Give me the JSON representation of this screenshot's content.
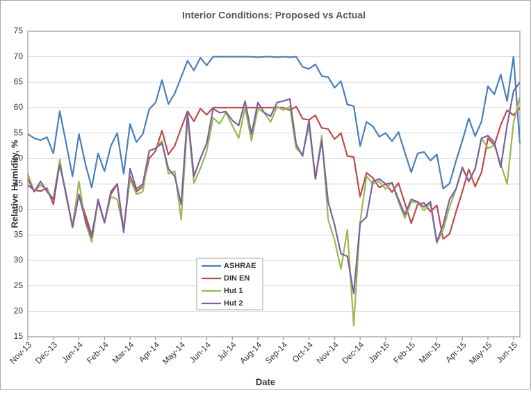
{
  "chart_data": {
    "type": "line",
    "title": "Interior Conditions:  Proposed  vs Actual",
    "x_label": "Date",
    "y_label": "Relative Humidity, %",
    "categories": [
      "Nov-13",
      null,
      null,
      null,
      "Dec-13",
      null,
      null,
      null,
      "Jan-14",
      null,
      null,
      null,
      "Feb-14",
      null,
      null,
      null,
      "Mar-14",
      null,
      null,
      null,
      "Apr-14",
      null,
      null,
      null,
      "May-14",
      null,
      null,
      null,
      "Jun-14",
      null,
      null,
      null,
      "Jul-14",
      null,
      null,
      null,
      "Aug-14",
      null,
      null,
      null,
      "Sep-14",
      null,
      null,
      null,
      "Oct-14",
      null,
      null,
      null,
      "Nov-14",
      null,
      null,
      null,
      "Dec-14",
      null,
      null,
      null,
      "Jan-15",
      null,
      null,
      null,
      "Feb-15",
      null,
      null,
      null,
      "Mar-15",
      null,
      null,
      null,
      "Apr-15",
      null,
      null,
      null,
      "May-15",
      null,
      null,
      null,
      "Jun-15",
      null
    ],
    "series": [
      {
        "name": "ASHRAE",
        "color": "#4a7ebb",
        "values": [
          54.8,
          54,
          53.6,
          54.2,
          51,
          59.3,
          53,
          46.5,
          54.8,
          49,
          44.3,
          51,
          47.5,
          52.5,
          55,
          47,
          56.8,
          53.2,
          54.8,
          59.7,
          61,
          65.4,
          60.7,
          62.8,
          66,
          69.2,
          67.3,
          69.8,
          68.3,
          70,
          70,
          70,
          70,
          70,
          70,
          70,
          69.9,
          70,
          70,
          69.9,
          70,
          69.9,
          70,
          68,
          67.6,
          68.5,
          66.2,
          66,
          63.9,
          65.2,
          60.6,
          60.3,
          52.4,
          57.2,
          56.3,
          54.3,
          55,
          53.4,
          55.2,
          51.2,
          47.3,
          51,
          51.3,
          49.6,
          50.8,
          44.1,
          45.1,
          49.5,
          53.5,
          57.9,
          54.4,
          57.3,
          64.2,
          62.6,
          66.5,
          61.3,
          70,
          53
        ]
      },
      {
        "name": "DIN EN",
        "color": "#be4b48",
        "values": [
          44.8,
          43.8,
          43.6,
          44.2,
          41,
          49.2,
          43,
          36.5,
          43,
          39,
          35,
          41.5,
          37.5,
          43,
          45,
          36,
          46.5,
          43.5,
          44.5,
          50,
          51.5,
          55.5,
          50.8,
          52.5,
          56,
          59.3,
          57.3,
          59.8,
          58.6,
          60,
          60,
          60,
          60,
          60,
          60,
          60,
          60,
          60,
          60,
          60,
          60,
          59.5,
          60.2,
          57.8,
          57.6,
          58.5,
          56,
          55.8,
          53.8,
          55,
          50.5,
          50.3,
          42.5,
          47.2,
          46.2,
          44.3,
          45,
          43.4,
          45.2,
          41.2,
          37.3,
          41,
          41.3,
          39.6,
          40.8,
          34.2,
          35.2,
          39.5,
          43.5,
          47.9,
          44.5,
          47.3,
          54,
          52.6,
          56.6,
          59.5,
          58.5,
          60
        ]
      },
      {
        "name": "Hut 1",
        "color": "#98b954",
        "values": [
          47,
          43.5,
          44.8,
          43.8,
          42,
          49.8,
          42.5,
          36.8,
          45.5,
          37.5,
          33.6,
          41.8,
          37.4,
          42.5,
          42,
          36,
          46,
          43,
          43.5,
          51.5,
          52,
          53.5,
          47,
          47.5,
          38,
          58,
          45.2,
          48,
          51.5,
          58,
          56.8,
          59,
          56.5,
          54,
          60,
          53.5,
          59.8,
          59,
          57.2,
          60.2,
          59.5,
          60.2,
          52,
          50.8,
          56.5,
          46,
          54.5,
          38,
          34,
          28.3,
          36,
          17.2,
          37.5,
          46.5,
          45,
          45.5,
          44,
          45.3,
          41.5,
          38.3,
          41.5,
          41.4,
          39.8,
          41.2,
          33.4,
          36,
          40.5,
          44,
          48,
          45.6,
          48,
          54,
          52,
          52.6,
          49,
          45,
          57,
          62
        ]
      },
      {
        "name": "Hut 2",
        "color": "#7d60a0",
        "values": [
          46,
          43.5,
          45.5,
          43.5,
          42,
          48.8,
          43,
          36.5,
          42.8,
          38,
          34.5,
          42,
          37.4,
          43.5,
          45,
          35.5,
          48,
          44,
          45,
          51.5,
          52,
          53,
          48,
          46.5,
          41,
          59,
          46.5,
          50,
          53,
          59.8,
          59,
          59.2,
          57.5,
          56.5,
          61.3,
          54.8,
          61,
          59,
          58.3,
          61,
          61.3,
          61.7,
          52.8,
          50.5,
          57.5,
          46,
          53.5,
          41.5,
          37,
          31.3,
          30.8,
          23.5,
          37.3,
          38.5,
          45.5,
          46,
          45,
          45.2,
          42,
          39,
          42,
          41.5,
          40.5,
          41.5,
          33.7,
          37,
          42,
          44,
          48.3,
          45.5,
          48,
          54,
          54.5,
          53.2,
          48.3,
          56.5,
          63.2,
          65
        ]
      }
    ],
    "ylim": [
      15,
      75
    ],
    "yticks": [
      15,
      20,
      25,
      30,
      35,
      40,
      45,
      50,
      55,
      60,
      65,
      70,
      75
    ],
    "grid": true
  }
}
